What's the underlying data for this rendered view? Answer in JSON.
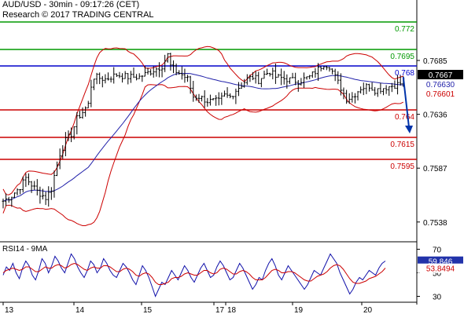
{
  "header": {
    "symbol_line": "AUD/USD - 30min - 09:17:26 (CET)",
    "copyright_line": "Research © 2017 TRADING CENTRAL"
  },
  "rsi_label": "RSI14 - 9MA",
  "colors": {
    "resistance": "#009900",
    "pivot": "#0000cc",
    "support": "#cc0000",
    "arrow": "#0033aa",
    "candle": "#000000",
    "bollinger": "#cc0000",
    "ma": "#2222aa",
    "rsi": "#1111aa",
    "rsi_ma": "#cc0000",
    "price_badge": "#000000",
    "rsi_badge": "#2233aa"
  },
  "chart_data": [
    {
      "type": "candlestick",
      "ylim": [
        0.752,
        0.774
      ],
      "y_ticks": [
        "0.7685",
        "0.7636",
        "0.7587",
        "0.7538"
      ],
      "x_ticks": [
        "13",
        "14",
        "15",
        "17",
        "18",
        "19",
        "20"
      ],
      "levels": [
        {
          "label": "0.772",
          "value": 0.772,
          "kind": "resistance"
        },
        {
          "label": "0.7695",
          "value": 0.7695,
          "kind": "resistance"
        },
        {
          "label": "0.768",
          "value": 0.768,
          "kind": "pivot"
        },
        {
          "label": "0.764",
          "value": 0.764,
          "kind": "support"
        },
        {
          "label": "0.7615",
          "value": 0.7615,
          "kind": "support"
        },
        {
          "label": "0.7595",
          "value": 0.7595,
          "kind": "support"
        }
      ],
      "current_values": [
        {
          "label": "0.7667",
          "kind": "price"
        },
        {
          "label": "0.76630",
          "kind": "ma"
        },
        {
          "label": "0.76601",
          "kind": "support"
        }
      ],
      "close_path": [
        [
          0,
          0.7557
        ],
        [
          3,
          0.7562
        ],
        [
          6,
          0.757
        ],
        [
          8,
          0.7578
        ],
        [
          10,
          0.7572
        ],
        [
          12,
          0.7566
        ],
        [
          15,
          0.756
        ],
        [
          17,
          0.7568
        ],
        [
          18,
          0.758
        ],
        [
          20,
          0.76
        ],
        [
          22,
          0.7612
        ],
        [
          24,
          0.7618
        ],
        [
          26,
          0.7632
        ],
        [
          28,
          0.7638
        ],
        [
          30,
          0.7645
        ],
        [
          31,
          0.7662
        ],
        [
          32,
          0.767
        ],
        [
          36,
          0.7668
        ],
        [
          40,
          0.7672
        ],
        [
          44,
          0.767
        ],
        [
          48,
          0.767
        ],
        [
          52,
          0.7675
        ],
        [
          56,
          0.768
        ],
        [
          58,
          0.769
        ],
        [
          59,
          0.768
        ],
        [
          61,
          0.7675
        ],
        [
          63,
          0.7672
        ],
        [
          65,
          0.7668
        ],
        [
          67,
          0.7652
        ],
        [
          69,
          0.7652
        ],
        [
          72,
          0.7648
        ],
        [
          76,
          0.7648
        ],
        [
          78,
          0.7653
        ],
        [
          80,
          0.7652
        ],
        [
          82,
          0.7658
        ],
        [
          84,
          0.7663
        ],
        [
          86,
          0.7668
        ],
        [
          88,
          0.767
        ],
        [
          90,
          0.7667
        ],
        [
          92,
          0.7672
        ],
        [
          94,
          0.7675
        ],
        [
          96,
          0.767
        ],
        [
          100,
          0.7668
        ],
        [
          104,
          0.7666
        ],
        [
          108,
          0.767
        ],
        [
          111,
          0.7677
        ],
        [
          113,
          0.7682
        ],
        [
          115,
          0.768
        ],
        [
          117,
          0.767
        ],
        [
          119,
          0.766
        ],
        [
          121,
          0.765
        ],
        [
          123,
          0.7652
        ],
        [
          126,
          0.766
        ],
        [
          129,
          0.7662
        ],
        [
          131,
          0.7658
        ],
        [
          134,
          0.766
        ],
        [
          137,
          0.7662
        ],
        [
          140,
          0.7664
        ],
        [
          141,
          0.7667
        ]
      ],
      "projection": [
        [
          141,
          0.767
        ],
        [
          143,
          0.762
        ]
      ]
    },
    {
      "type": "line",
      "title": "RSI14 - 9MA",
      "ylim": [
        25,
        75
      ],
      "y_ticks": [
        "70",
        "50",
        "30"
      ],
      "current_values": [
        {
          "label": "59.846",
          "kind": "rsi"
        },
        {
          "label": "53.8494",
          "kind": "rsi_ma"
        }
      ],
      "series": [
        {
          "kind": "rsi",
          "values": [
            48,
            55,
            52,
            58,
            50,
            45,
            54,
            60,
            56,
            48,
            44,
            52,
            62,
            58,
            50,
            56,
            64,
            60,
            54,
            50,
            58,
            66,
            62,
            55,
            50,
            46,
            52,
            60,
            57,
            50,
            54,
            62,
            58,
            52,
            48,
            46,
            52,
            58,
            55,
            50,
            44,
            40,
            48,
            56,
            52,
            46,
            38,
            30,
            36,
            42,
            40,
            46,
            52,
            48,
            44,
            50,
            56,
            52,
            46,
            42,
            48,
            54,
            58,
            52,
            46,
            48,
            55,
            60,
            56,
            50,
            44,
            46,
            52,
            58,
            54,
            48,
            42,
            36,
            40,
            46,
            44,
            52,
            58,
            62,
            56,
            48,
            44,
            50,
            56,
            52,
            48,
            44,
            40,
            36,
            40,
            46,
            52,
            50,
            48,
            54,
            60,
            66,
            62,
            58,
            50,
            44,
            38,
            32,
            36,
            42,
            46,
            44,
            48,
            52,
            50,
            48,
            54,
            58,
            60
          ]
        },
        {
          "kind": "rsi_ma",
          "values": [
            50,
            52,
            53,
            54,
            53,
            52,
            53,
            55,
            55,
            53,
            51,
            51,
            53,
            55,
            54,
            54,
            56,
            57,
            56,
            54,
            55,
            57,
            58,
            57,
            55,
            53,
            52,
            54,
            55,
            54,
            54,
            56,
            56,
            55,
            53,
            51,
            51,
            53,
            54,
            53,
            51,
            48,
            47,
            49,
            50,
            49,
            46,
            42,
            40,
            40,
            41,
            42,
            45,
            46,
            46,
            47,
            49,
            50,
            49,
            48,
            48,
            50,
            52,
            52,
            50,
            49,
            50,
            53,
            54,
            53,
            51,
            49,
            49,
            51,
            52,
            51,
            49,
            46,
            44,
            44,
            44,
            46,
            49,
            52,
            53,
            52,
            50,
            50,
            51,
            51,
            50,
            48,
            46,
            44,
            43,
            43,
            45,
            47,
            48,
            49,
            51,
            54,
            56,
            57,
            56,
            53,
            49,
            45,
            42,
            41,
            41,
            42,
            43,
            45,
            46,
            47,
            49,
            51,
            54
          ]
        }
      ]
    }
  ]
}
